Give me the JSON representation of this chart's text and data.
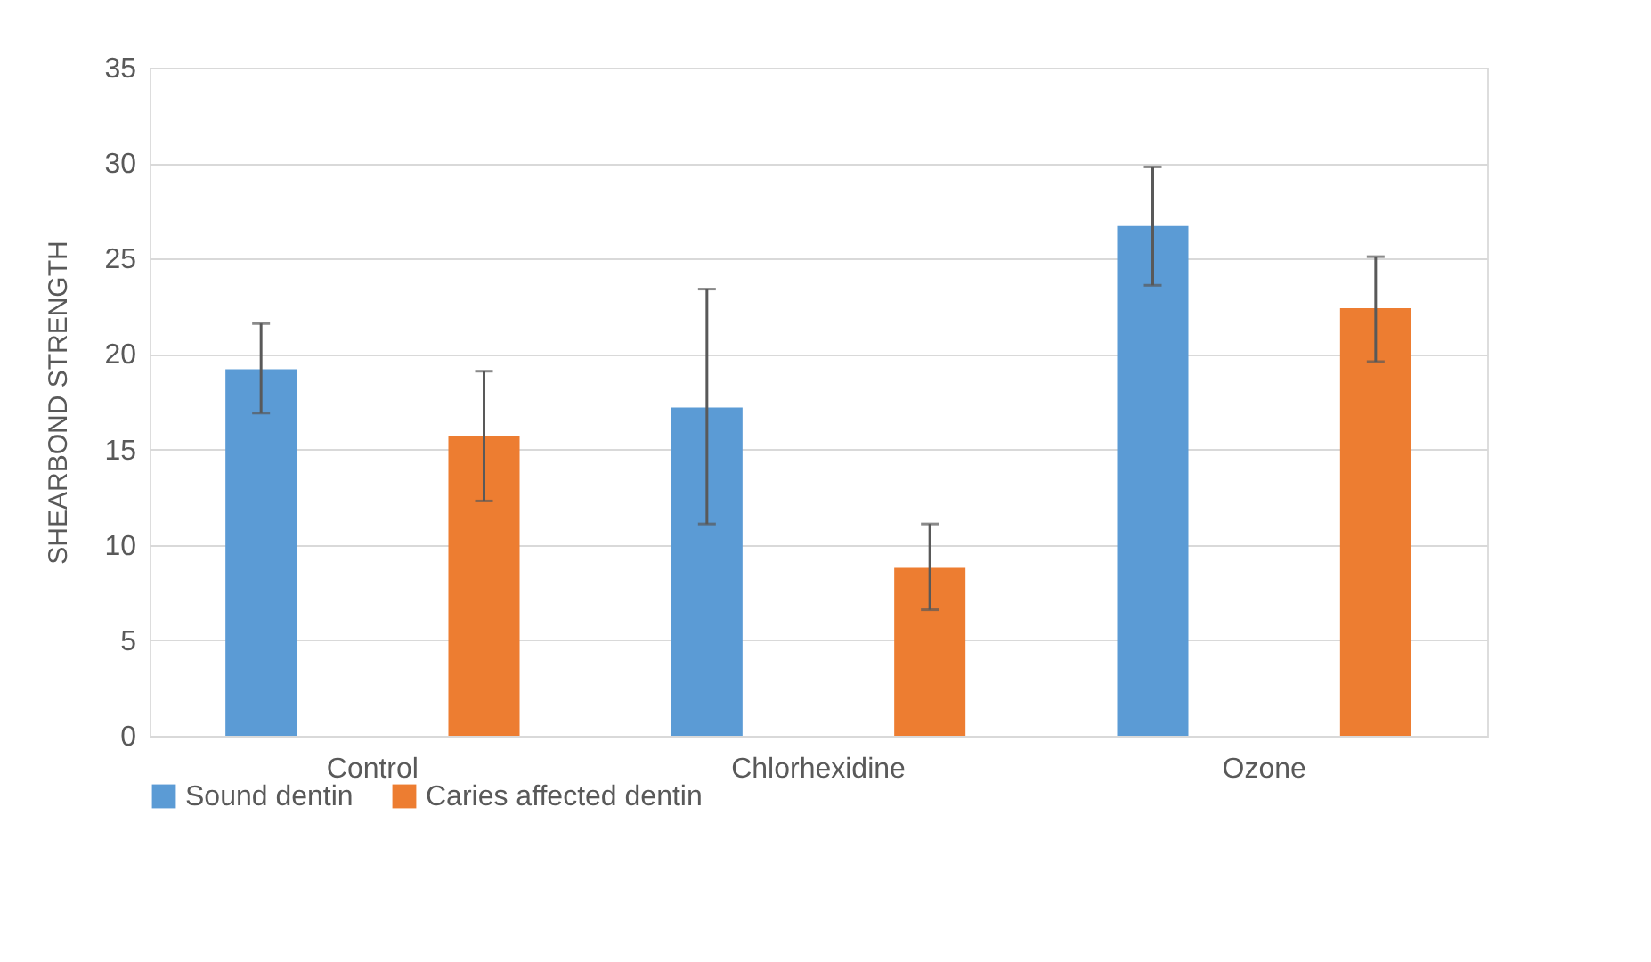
{
  "chart_data": {
    "type": "bar",
    "ylabel": "SHEARBOND STRENGTH",
    "categories": [
      "Control",
      "Chlorhexidine",
      "Ozone"
    ],
    "series": [
      {
        "name": "Sound dentin",
        "color": "#5b9bd5",
        "values": [
          19.2,
          17.2,
          26.7
        ],
        "errors": [
          [
            16.9,
            21.6
          ],
          [
            11.1,
            23.4
          ],
          [
            23.6,
            29.8
          ]
        ]
      },
      {
        "name": "Caries affected dentin",
        "color": "#ed7d31",
        "values": [
          15.7,
          8.8,
          22.4
        ],
        "errors": [
          [
            12.3,
            19.1
          ],
          [
            6.6,
            11.1
          ],
          [
            19.6,
            25.1
          ]
        ]
      }
    ],
    "ylim": [
      0,
      35
    ],
    "yticks": [
      0,
      5,
      10,
      15,
      20,
      25,
      30,
      35
    ],
    "grid": "y",
    "legend": "bottom"
  }
}
